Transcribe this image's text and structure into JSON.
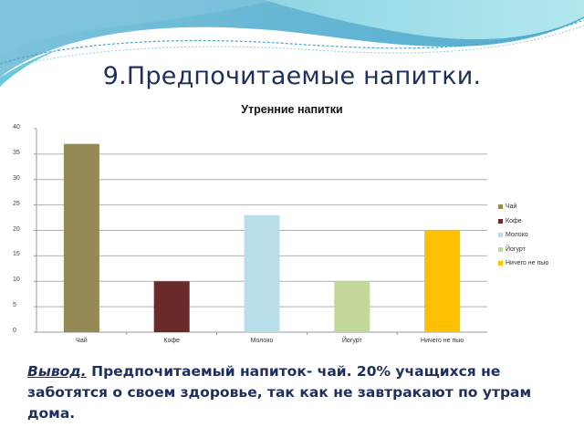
{
  "slide": {
    "title": "9.Предпочитаемые напитки.",
    "conclusion_lead": "Вывод.",
    "conclusion_text": " Предпочитаемый напиток- чай. 20% учащихся не заботятся о своем здоровье, так как не завтракают по утрам дома."
  },
  "colors": {
    "title_text": "#1f2f5c",
    "gridline": "#b0b0b0",
    "wave_dark": "#5fb0d0",
    "wave_light": "#9fe0e8"
  },
  "chart_data": {
    "type": "bar",
    "title": "Утренние напитки",
    "xlabel": "",
    "ylabel": "",
    "categories": [
      "Чай",
      "Кофе",
      "Молоко",
      "Йогурт",
      "Ничего не пью"
    ],
    "values": [
      37,
      10,
      23,
      10,
      20
    ],
    "bar_colors": [
      "#948b54",
      "#6b2a2a",
      "#b8dfe9",
      "#c4d79b",
      "#ffc000"
    ],
    "ylim": [
      0,
      40
    ],
    "yticks": [
      0,
      5,
      10,
      15,
      20,
      25,
      30,
      35,
      40
    ],
    "grid": true,
    "legend": {
      "position": "right",
      "entries": [
        "Чай",
        "Кофе",
        "Молоко",
        "Йогурт",
        "Ничего не пью"
      ]
    }
  }
}
